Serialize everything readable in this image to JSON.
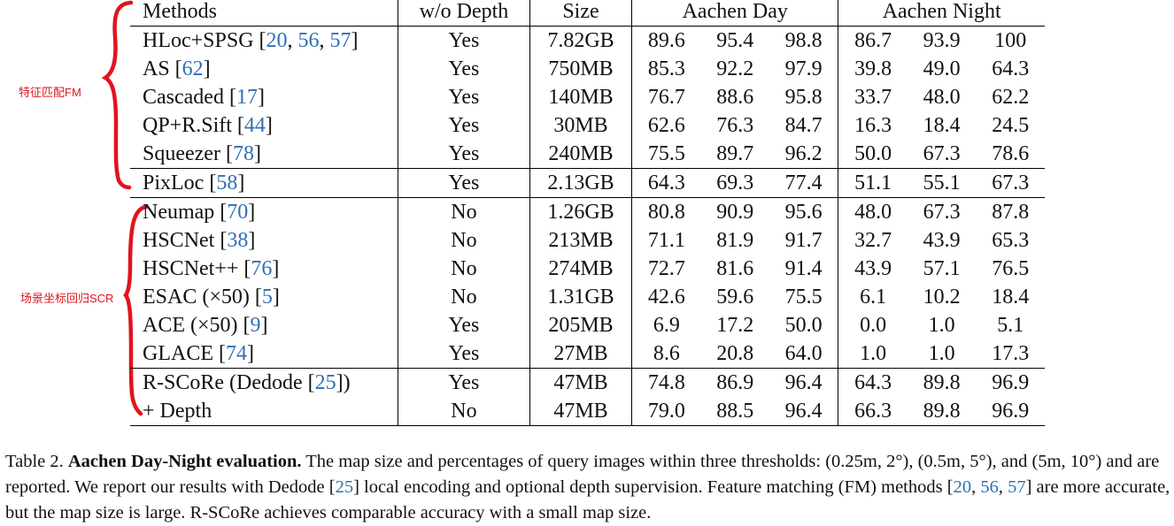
{
  "annotations": {
    "fm_label": "特征匹配FM",
    "scr_label": "场景坐标回归SCR",
    "color": "#e0141e"
  },
  "table": {
    "headers": {
      "methods": "Methods",
      "wo_depth": "w/o Depth",
      "size": "Size",
      "day": "Aachen Day",
      "night": "Aachen Night"
    },
    "rows": [
      {
        "method": "HLoc+SPSG [",
        "refs": [
          "20",
          "56",
          "57"
        ],
        "close": "]",
        "wo_depth": "Yes",
        "size": "7.82GB",
        "day": [
          "89.6",
          "95.4",
          "98.8"
        ],
        "night": [
          "86.7",
          "93.9",
          "100"
        ]
      },
      {
        "method": "AS [",
        "refs": [
          "62"
        ],
        "close": "]",
        "wo_depth": "Yes",
        "size": "750MB",
        "day": [
          "85.3",
          "92.2",
          "97.9"
        ],
        "night": [
          "39.8",
          "49.0",
          "64.3"
        ]
      },
      {
        "method": "Cascaded [",
        "refs": [
          "17"
        ],
        "close": "]",
        "wo_depth": "Yes",
        "size": "140MB",
        "day": [
          "76.7",
          "88.6",
          "95.8"
        ],
        "night": [
          "33.7",
          "48.0",
          "62.2"
        ]
      },
      {
        "method": "QP+R.Sift [",
        "refs": [
          "44"
        ],
        "close": "]",
        "wo_depth": "Yes",
        "size": "30MB",
        "day": [
          "62.6",
          "76.3",
          "84.7"
        ],
        "night": [
          "16.3",
          "18.4",
          "24.5"
        ]
      },
      {
        "method": "Squeezer [",
        "refs": [
          "78"
        ],
        "close": "]",
        "wo_depth": "Yes",
        "size": "240MB",
        "day": [
          "75.5",
          "89.7",
          "96.2"
        ],
        "night": [
          "50.0",
          "67.3",
          "78.6"
        ]
      },
      {
        "method": "PixLoc [",
        "refs": [
          "58"
        ],
        "close": "]",
        "wo_depth": "Yes",
        "size": "2.13GB",
        "day": [
          "64.3",
          "69.3",
          "77.4"
        ],
        "night": [
          "51.1",
          "55.1",
          "67.3"
        ]
      },
      {
        "method": "Neumap [",
        "refs": [
          "70"
        ],
        "close": "]",
        "wo_depth": "No",
        "size": "1.26GB",
        "day": [
          "80.8",
          "90.9",
          "95.6"
        ],
        "night": [
          "48.0",
          "67.3",
          "87.8"
        ]
      },
      {
        "method": "HSCNet [",
        "refs": [
          "38"
        ],
        "close": "]",
        "wo_depth": "No",
        "size": "213MB",
        "day": [
          "71.1",
          "81.9",
          "91.7"
        ],
        "night": [
          "32.7",
          "43.9",
          "65.3"
        ]
      },
      {
        "method": "HSCNet++ [",
        "refs": [
          "76"
        ],
        "close": "]",
        "wo_depth": "No",
        "size": "274MB",
        "day": [
          "72.7",
          "81.6",
          "91.4"
        ],
        "night": [
          "43.9",
          "57.1",
          "76.5"
        ]
      },
      {
        "method": "ESAC (×50) [",
        "refs": [
          "5"
        ],
        "close": "]",
        "wo_depth": "No",
        "size": "1.31GB",
        "day": [
          "42.6",
          "59.6",
          "75.5"
        ],
        "night": [
          "6.1",
          "10.2",
          "18.4"
        ]
      },
      {
        "method": "ACE (×50) [",
        "refs": [
          "9"
        ],
        "close": "]",
        "wo_depth": "Yes",
        "size": "205MB",
        "day": [
          "6.9",
          "17.2",
          "50.0"
        ],
        "night": [
          "0.0",
          "1.0",
          "5.1"
        ]
      },
      {
        "method": "GLACE [",
        "refs": [
          "74"
        ],
        "close": "]",
        "wo_depth": "Yes",
        "size": "27MB",
        "day": [
          "8.6",
          "20.8",
          "64.0"
        ],
        "night": [
          "1.0",
          "1.0",
          "17.3"
        ]
      },
      {
        "method": "R-SCoRe (Dedode [",
        "refs": [
          "25"
        ],
        "close": "])",
        "wo_depth": "Yes",
        "size": "47MB",
        "day": [
          "74.8",
          "86.9",
          "96.4"
        ],
        "night": [
          "64.3",
          "89.8",
          "96.9"
        ]
      },
      {
        "method": "+ Depth",
        "refs": [],
        "close": "",
        "wo_depth": "No",
        "size": "47MB",
        "day": [
          "79.0",
          "88.5",
          "96.4"
        ],
        "night": [
          "66.3",
          "89.8",
          "96.9"
        ]
      }
    ]
  },
  "caption": {
    "prefix": "Table 2. ",
    "title": "Aachen Day-Night evaluation.",
    "text1": " The map size and percentages of query images within three thresholds: (0.25m, 2°), (0.5m, 5°), and (5m, 10°) and are reported. We report our results with Dedode [",
    "ref1": "25",
    "text2": "] local encoding and optional depth supervision. Feature matching (FM) methods [",
    "ref2a": "20",
    "ref2b": "56",
    "ref2c": "57",
    "text3": "] are more accurate, but the map size is large. R-SCoRe achieves comparable accuracy with a small map size.",
    "comma": ", "
  }
}
